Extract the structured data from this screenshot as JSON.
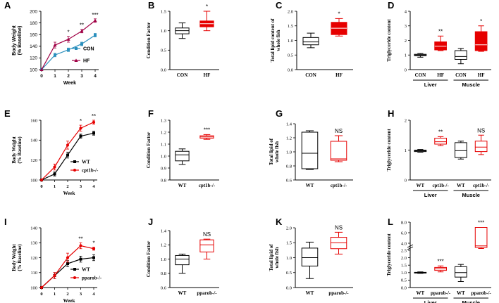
{
  "colors": {
    "black": "#000000",
    "red": "#e60000",
    "teal": "#2a8fbd",
    "crimson": "#a00045",
    "pink": "#e8a0b0"
  },
  "chart_data": [
    {
      "panel": "A",
      "type": "line",
      "xlabel": "Week",
      "ylabel": "Body Weight\n(% Baseline)",
      "x": [
        0,
        1,
        2,
        3,
        4
      ],
      "ylim": [
        100,
        200
      ],
      "yticks": [
        100,
        120,
        140,
        160,
        180,
        200
      ],
      "series": [
        {
          "name": "CON",
          "color": "#2a8fbd",
          "marker": "square",
          "values": [
            100,
            125,
            134,
            144,
            159
          ],
          "err": [
            0,
            3,
            3,
            3,
            3
          ]
        },
        {
          "name": "HF",
          "color": "#a00045",
          "marker": "triangle",
          "values": [
            100,
            142,
            152,
            166,
            184
          ],
          "err": [
            0,
            5,
            5,
            3,
            3
          ]
        }
      ],
      "sig": [
        {
          "x": 2,
          "text": "*"
        },
        {
          "x": 3,
          "text": "**"
        },
        {
          "x": 4,
          "text": "***"
        }
      ]
    },
    {
      "panel": "B",
      "type": "box",
      "ylabel": "Condition Factor",
      "ylim": [
        0.0,
        1.5
      ],
      "yticks": [
        0.0,
        0.5,
        1.0,
        1.5
      ],
      "boxes": [
        {
          "label": "CON",
          "color": "#000000",
          "fill": "none",
          "min": 0.8,
          "q1": 0.92,
          "median": 1.0,
          "q3": 1.07,
          "max": 1.2
        },
        {
          "label": "HF",
          "color": "#e60000",
          "fill": "#e60000",
          "min": 1.0,
          "q1": 1.1,
          "median": 1.18,
          "q3": 1.25,
          "max": 1.5,
          "sig": "*"
        }
      ]
    },
    {
      "panel": "C",
      "type": "box",
      "ylabel": "Total lipid content of\nwhole fish",
      "ylim": [
        0.0,
        2.0
      ],
      "yticks": [
        0.0,
        0.5,
        1.0,
        1.5,
        2.0
      ],
      "boxes": [
        {
          "label": "CON",
          "color": "#000000",
          "fill": "none",
          "min": 0.75,
          "q1": 0.85,
          "median": 0.95,
          "q3": 1.1,
          "max": 1.25
        },
        {
          "label": "HF",
          "color": "#e60000",
          "fill": "#e60000",
          "min": 1.15,
          "q1": 1.2,
          "median": 1.42,
          "q3": 1.62,
          "max": 1.75,
          "sig": "*"
        }
      ]
    },
    {
      "panel": "D",
      "type": "box",
      "ylabel": "Triglyceride content",
      "ylim": [
        0,
        4
      ],
      "yticks": [
        0,
        1,
        2,
        3,
        4
      ],
      "groups": [
        "Liver",
        "Muscle"
      ],
      "boxes": [
        {
          "label": "CON",
          "color": "#000000",
          "fill": "none",
          "min": 0.85,
          "q1": 0.95,
          "median": 1.0,
          "q3": 1.05,
          "max": 1.1
        },
        {
          "label": "HF",
          "color": "#e60000",
          "fill": "#e60000",
          "min": 1.3,
          "q1": 1.35,
          "median": 1.6,
          "q3": 1.9,
          "max": 2.3,
          "sig": "**"
        },
        {
          "label": "CON",
          "color": "#000000",
          "fill": "none",
          "min": 0.4,
          "q1": 0.7,
          "median": 0.9,
          "q3": 1.3,
          "max": 1.45
        },
        {
          "label": "HF",
          "color": "#e60000",
          "fill": "#e60000",
          "min": 1.25,
          "q1": 1.3,
          "median": 1.7,
          "q3": 2.6,
          "max": 3.0,
          "sig": "*"
        }
      ]
    },
    {
      "panel": "E",
      "type": "line",
      "xlabel": "Week",
      "ylabel": "Body Weight\n(% Baseline)",
      "x": [
        0,
        1,
        2,
        3,
        4
      ],
      "ylim": [
        100,
        160
      ],
      "yticks": [
        100,
        120,
        140,
        160
      ],
      "series": [
        {
          "name": "WT",
          "color": "#000000",
          "marker": "square",
          "values": [
            100,
            106,
            125,
            144,
            147
          ],
          "err": [
            0,
            2,
            3,
            2,
            2
          ]
        },
        {
          "name": "cpt1b-/-",
          "color": "#e60000",
          "marker": "circle",
          "values": [
            100,
            113,
            135,
            152,
            158
          ],
          "err": [
            0,
            3,
            4,
            3,
            2
          ]
        }
      ],
      "sig": [
        {
          "x": 3,
          "text": "*"
        },
        {
          "x": 4,
          "text": "**"
        }
      ]
    },
    {
      "panel": "F",
      "type": "box",
      "ylabel": "Condition Factor",
      "ylim": [
        0.8,
        1.3
      ],
      "yticks": [
        0.8,
        0.9,
        1.0,
        1.1,
        1.2,
        1.3
      ],
      "boxes": [
        {
          "label": "WT",
          "color": "#000000",
          "fill": "none",
          "min": 0.93,
          "q1": 0.96,
          "median": 1.01,
          "q3": 1.04,
          "max": 1.06
        },
        {
          "label": "cpt1b-/-",
          "color": "#e60000",
          "fill": "none",
          "min": 1.14,
          "q1": 1.15,
          "median": 1.16,
          "q3": 1.17,
          "max": 1.18,
          "sig": "***"
        }
      ]
    },
    {
      "panel": "G",
      "type": "box",
      "ylabel": "Total lipid of\nwhole fish",
      "ylim": [
        0.6,
        1.4
      ],
      "yticks": [
        0.6,
        0.8,
        1.0,
        1.2,
        1.4
      ],
      "boxes": [
        {
          "label": "WT",
          "color": "#000000",
          "fill": "none",
          "min": 0.75,
          "q1": 0.76,
          "median": 0.98,
          "q3": 1.28,
          "max": 1.3
        },
        {
          "label": "cpt1b-/-",
          "color": "#e60000",
          "fill": "none",
          "min": 0.86,
          "q1": 0.88,
          "median": 0.9,
          "q3": 1.15,
          "max": 1.23,
          "sig": "NS"
        }
      ]
    },
    {
      "panel": "H",
      "type": "box",
      "ylabel": "Triglyceride content",
      "ylim": [
        0,
        2
      ],
      "yticks": [
        0,
        1,
        2
      ],
      "groups": [
        "Liver",
        "Muscle"
      ],
      "boxes": [
        {
          "label": "WT",
          "color": "#000000",
          "fill": "none",
          "min": 0.93,
          "q1": 0.95,
          "median": 0.98,
          "q3": 1.0,
          "max": 1.02
        },
        {
          "label": "cpt1b-/-",
          "color": "#e60000",
          "fill": "none",
          "min": 1.15,
          "q1": 1.2,
          "median": 1.28,
          "q3": 1.4,
          "max": 1.45,
          "sig": "**"
        },
        {
          "label": "WT",
          "color": "#000000",
          "fill": "none",
          "min": 0.7,
          "q1": 0.75,
          "median": 0.98,
          "q3": 1.25,
          "max": 1.3
        },
        {
          "label": "cpt1b-/-",
          "color": "#e60000",
          "fill": "none",
          "min": 0.85,
          "q1": 0.95,
          "median": 1.1,
          "q3": 1.3,
          "max": 1.5,
          "sig": "NS"
        }
      ]
    },
    {
      "panel": "I",
      "type": "line",
      "xlabel": "Week",
      "ylabel": "Body Weight\n(% Baseline)",
      "x": [
        0,
        1,
        2,
        3,
        4
      ],
      "ylim": [
        100,
        140
      ],
      "yticks": [
        100,
        110,
        120,
        130,
        140
      ],
      "series": [
        {
          "name": "WT",
          "color": "#000000",
          "marker": "square",
          "values": [
            100,
            108,
            116,
            119,
            120
          ],
          "err": [
            0,
            2,
            2,
            2,
            2
          ]
        },
        {
          "name": "pparob-/-",
          "color": "#e60000",
          "marker": "circle",
          "values": [
            100,
            108,
            120,
            128,
            126
          ],
          "err": [
            0,
            2,
            3,
            2,
            1
          ]
        }
      ],
      "sig": [
        {
          "x": 3,
          "text": "**"
        },
        {
          "x": 4,
          "text": "*"
        }
      ]
    },
    {
      "panel": "J",
      "type": "box",
      "ylabel": "Condition Factor",
      "ylim": [
        0.6,
        1.4
      ],
      "yticks": [
        0.6,
        0.8,
        1.0,
        1.2,
        1.4
      ],
      "boxes": [
        {
          "label": "WT",
          "color": "#000000",
          "fill": "none",
          "min": 0.8,
          "q1": 0.92,
          "median": 1.0,
          "q3": 1.05,
          "max": 1.07
        },
        {
          "label": "pparob-/-",
          "color": "#e60000",
          "fill": "none",
          "min": 1.0,
          "q1": 1.1,
          "median": 1.2,
          "q3": 1.27,
          "max": 1.28,
          "sig": "NS"
        }
      ]
    },
    {
      "panel": "K",
      "type": "box",
      "ylabel": "Total lipid of\nwhole fish",
      "ylim": [
        0.0,
        2.0
      ],
      "yticks": [
        0.0,
        0.5,
        1.0,
        1.5,
        2.0
      ],
      "boxes": [
        {
          "label": "WT",
          "color": "#000000",
          "fill": "none",
          "min": 0.3,
          "q1": 0.72,
          "median": 1.0,
          "q3": 1.32,
          "max": 1.52
        },
        {
          "label": "pparob-/-",
          "color": "#e60000",
          "fill": "none",
          "min": 1.12,
          "q1": 1.3,
          "median": 1.5,
          "q3": 1.68,
          "max": 1.85,
          "sig": "NS"
        }
      ]
    },
    {
      "panel": "L",
      "type": "box",
      "ylabel": "Triglyceride content",
      "broken_axis": true,
      "yticks": [
        0,
        0.5,
        1.0,
        1.5,
        2.0,
        2.5,
        4,
        6,
        8
      ],
      "groups": [
        "Liver",
        "Muscle"
      ],
      "boxes": [
        {
          "label": "WT",
          "color": "#000000",
          "fill": "none",
          "min": 0.95,
          "q1": 0.97,
          "median": 1.0,
          "q3": 1.02,
          "max": 1.05
        },
        {
          "label": "pparob-/-",
          "color": "#e60000",
          "fill": "none",
          "min": 1.05,
          "q1": 1.15,
          "median": 1.25,
          "q3": 1.35,
          "max": 1.45,
          "sig": "***"
        },
        {
          "label": "WT",
          "color": "#000000",
          "fill": "none",
          "min": 0.4,
          "q1": 0.7,
          "median": 1.0,
          "q3": 1.4,
          "max": 1.55
        },
        {
          "label": "pparob-/-",
          "color": "#e60000",
          "fill": "none",
          "min": 3.0,
          "q1": 3.2,
          "median": 3.5,
          "q3": 7.0,
          "max": 7.0,
          "sig": "***"
        }
      ]
    }
  ]
}
